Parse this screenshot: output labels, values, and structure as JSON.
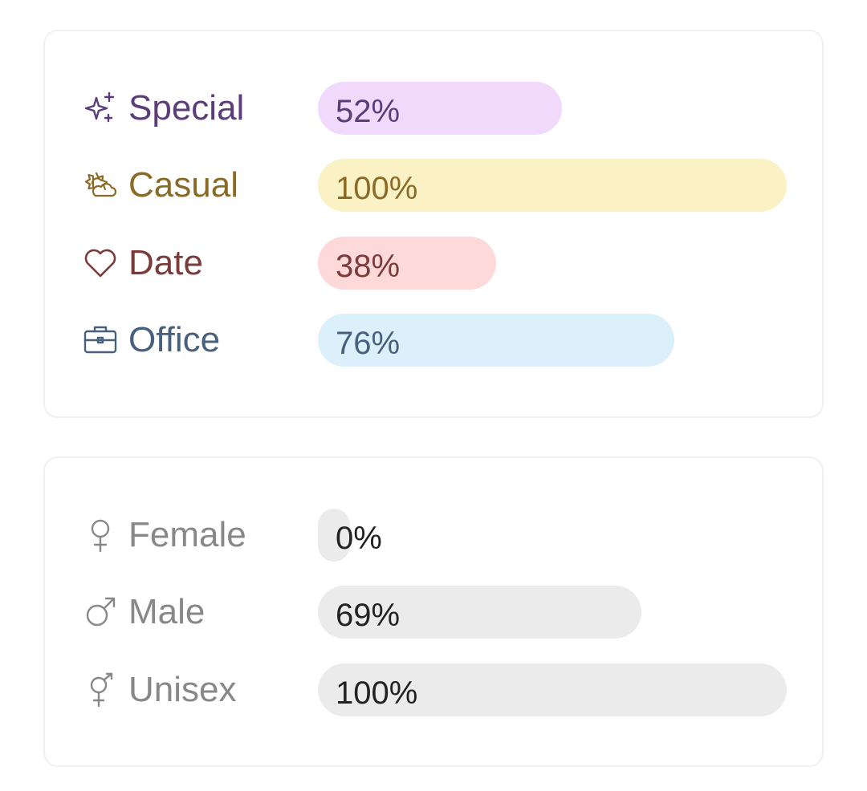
{
  "occasions": [
    {
      "label": "Special",
      "value": "52%",
      "fraction": 0.52,
      "icon": "sparkles-icon",
      "text_color": "#5b3d7a",
      "bar_color": "#f1d9fc"
    },
    {
      "label": "Casual",
      "value": "100%",
      "fraction": 1.0,
      "icon": "sun-cloud-icon",
      "text_color": "#8a6a27",
      "bar_color": "#faf1c5"
    },
    {
      "label": "Date",
      "value": "38%",
      "fraction": 0.38,
      "icon": "heart-icon",
      "text_color": "#7c3b3b",
      "bar_color": "#fed9d9"
    },
    {
      "label": "Office",
      "value": "76%",
      "fraction": 0.76,
      "icon": "briefcase-icon",
      "text_color": "#46607d",
      "bar_color": "#dcf0fc"
    }
  ],
  "gender": [
    {
      "label": "Female",
      "value": "0%",
      "fraction": 0.0,
      "icon": "female-icon",
      "text_color": "#888888",
      "bar_color": "#ebebeb"
    },
    {
      "label": "Male",
      "value": "69%",
      "fraction": 0.69,
      "icon": "male-icon",
      "text_color": "#888888",
      "bar_color": "#ebebeb"
    },
    {
      "label": "Unisex",
      "value": "100%",
      "fraction": 1.0,
      "icon": "unisex-icon",
      "text_color": "#888888",
      "bar_color": "#ebebeb"
    }
  ],
  "value_text_color_gender": "#222222"
}
